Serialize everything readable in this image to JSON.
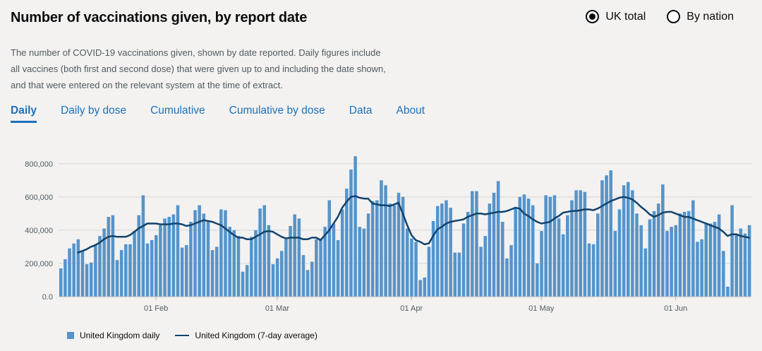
{
  "header": {
    "title": "Number of vaccinations given, by report date"
  },
  "radios": [
    {
      "label": "UK total",
      "selected": true
    },
    {
      "label": "By nation",
      "selected": false
    }
  ],
  "description": "The number of COVID-19 vaccinations given, shown by date reported. Daily figures include all vaccines (both first and second dose) that were given up to and including the date shown, and that were entered on the relevant system at the time of extract.",
  "tabs": [
    {
      "label": "Daily",
      "active": true
    },
    {
      "label": "Daily by dose",
      "active": false
    },
    {
      "label": "Cumulative",
      "active": false
    },
    {
      "label": "Cumulative by dose",
      "active": false
    },
    {
      "label": "Data",
      "active": false
    },
    {
      "label": "About",
      "active": false
    }
  ],
  "colors": {
    "bar": "#5694ca",
    "line": "#12436d",
    "accent": "#1d70b8"
  },
  "chart_data": {
    "type": "bar",
    "start_date": "2021-01-10",
    "x_ticks": [
      "01 Feb",
      "01 Mar",
      "01 Apr",
      "01 May",
      "01 Jun"
    ],
    "y_ticks": [
      "0.0",
      "200,000",
      "400,000",
      "600,000",
      "800,000"
    ],
    "ylim": [
      0,
      850000
    ],
    "grid": true,
    "legend_position": "bottom-left",
    "series": [
      {
        "name": "United Kingdom daily",
        "kind": "bar",
        "values": [
          170000,
          225000,
          290000,
          320000,
          345000,
          275000,
          195000,
          205000,
          315000,
          365000,
          410000,
          480000,
          490000,
          220000,
          280000,
          315000,
          315000,
          395000,
          490000,
          610000,
          320000,
          340000,
          370000,
          430000,
          470000,
          480000,
          495000,
          550000,
          295000,
          310000,
          450000,
          520000,
          550000,
          500000,
          450000,
          280000,
          300000,
          525000,
          520000,
          420000,
          400000,
          365000,
          150000,
          190000,
          360000,
          400000,
          530000,
          550000,
          430000,
          195000,
          230000,
          275000,
          345000,
          425000,
          495000,
          470000,
          250000,
          160000,
          210000,
          345000,
          345000,
          420000,
          580000,
          440000,
          340000,
          525000,
          650000,
          765000,
          845000,
          420000,
          410000,
          500000,
          575000,
          580000,
          700000,
          670000,
          560000,
          550000,
          625000,
          600000,
          410000,
          350000,
          330000,
          100000,
          115000,
          300000,
          455000,
          545000,
          560000,
          580000,
          535000,
          265000,
          265000,
          440000,
          510000,
          635000,
          635000,
          300000,
          365000,
          560000,
          625000,
          695000,
          450000,
          230000,
          310000,
          530000,
          600000,
          615000,
          590000,
          550000,
          200000,
          395000,
          610000,
          600000,
          610000,
          470000,
          375000,
          490000,
          580000,
          640000,
          640000,
          630000,
          320000,
          315000,
          500000,
          700000,
          730000,
          760000,
          395000,
          525000,
          670000,
          690000,
          640000,
          500000,
          430000,
          290000,
          465000,
          515000,
          560000,
          675000,
          395000,
          420000,
          430000,
          500000,
          510000,
          515000,
          580000,
          330000,
          345000,
          445000,
          440000,
          450000,
          495000,
          275000,
          60000,
          550000,
          380000,
          410000,
          380000,
          430000
        ]
      },
      {
        "name": "United Kingdom (7-day average)",
        "kind": "line",
        "values": [
          null,
          null,
          null,
          null,
          265000,
          275000,
          285000,
          300000,
          310000,
          325000,
          345000,
          360000,
          365000,
          360000,
          360000,
          360000,
          370000,
          390000,
          410000,
          425000,
          440000,
          440000,
          440000,
          435000,
          435000,
          435000,
          440000,
          440000,
          435000,
          425000,
          430000,
          440000,
          450000,
          460000,
          455000,
          450000,
          440000,
          430000,
          410000,
          390000,
          370000,
          355000,
          355000,
          345000,
          345000,
          360000,
          375000,
          390000,
          395000,
          390000,
          375000,
          360000,
          350000,
          355000,
          355000,
          355000,
          345000,
          345000,
          355000,
          355000,
          340000,
          370000,
          400000,
          440000,
          480000,
          535000,
          570000,
          600000,
          605000,
          595000,
          590000,
          590000,
          560000,
          555000,
          550000,
          550000,
          545000,
          555000,
          565000,
          500000,
          430000,
          370000,
          340000,
          330000,
          315000,
          320000,
          365000,
          405000,
          420000,
          440000,
          450000,
          455000,
          460000,
          465000,
          480000,
          490000,
          500000,
          500000,
          495000,
          500000,
          505000,
          510000,
          510000,
          515000,
          525000,
          535000,
          530000,
          500000,
          485000,
          465000,
          450000,
          440000,
          445000,
          450000,
          470000,
          485000,
          505000,
          510000,
          515000,
          515000,
          520000,
          525000,
          525000,
          520000,
          530000,
          545000,
          560000,
          575000,
          585000,
          595000,
          600000,
          595000,
          585000,
          565000,
          540000,
          520000,
          495000,
          480000,
          490000,
          505000,
          510000,
          510000,
          500000,
          490000,
          480000,
          480000,
          470000,
          460000,
          450000,
          440000,
          430000,
          420000,
          410000,
          390000,
          365000,
          375000,
          375000,
          365000,
          360000,
          355000
        ]
      }
    ]
  }
}
